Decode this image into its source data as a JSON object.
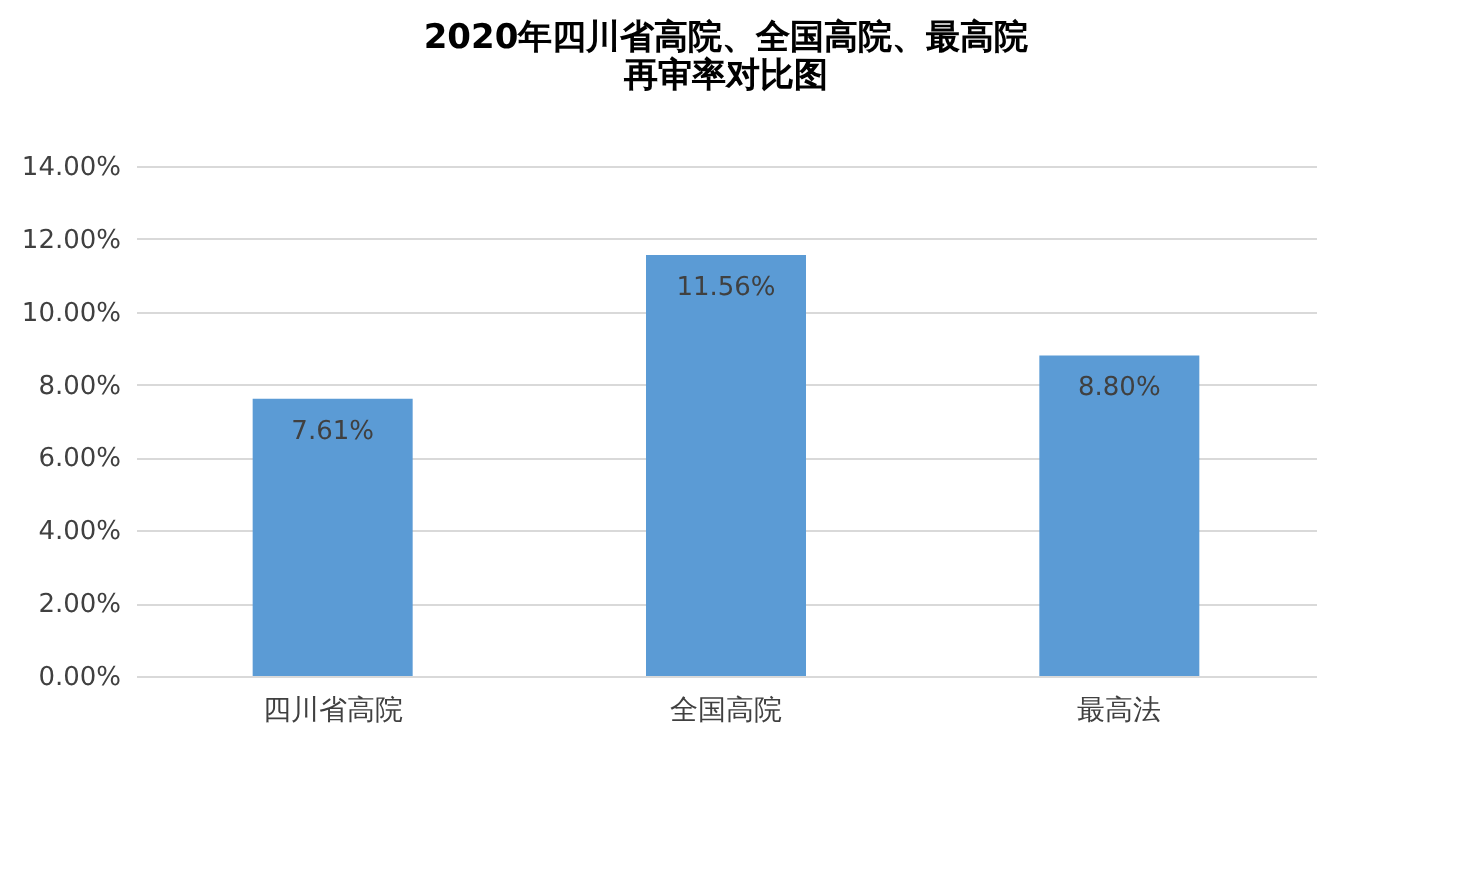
{
  "chart_data": {
    "type": "bar",
    "title": [
      "2020年四川省高院、全国高院、最高院",
      "再审率对比图"
    ],
    "categories": [
      "四川省高院",
      "全国高院",
      "最高法"
    ],
    "values": [
      7.61,
      11.56,
      8.8
    ],
    "value_labels": [
      "7.61%",
      "11.56%",
      "8.80%"
    ],
    "color": "#5b9bd5",
    "ylim": [
      0,
      14
    ],
    "yticks": [
      {
        "value": 0,
        "label": "0.00%"
      },
      {
        "value": 2,
        "label": "2.00%"
      },
      {
        "value": 4,
        "label": "4.00%"
      },
      {
        "value": 6,
        "label": "6.00%"
      },
      {
        "value": 8,
        "label": "8.00%"
      },
      {
        "value": 10,
        "label": "10.00%"
      },
      {
        "value": 12,
        "label": "12.00%"
      },
      {
        "value": 14,
        "label": "14.00%"
      }
    ],
    "grid": "y"
  }
}
